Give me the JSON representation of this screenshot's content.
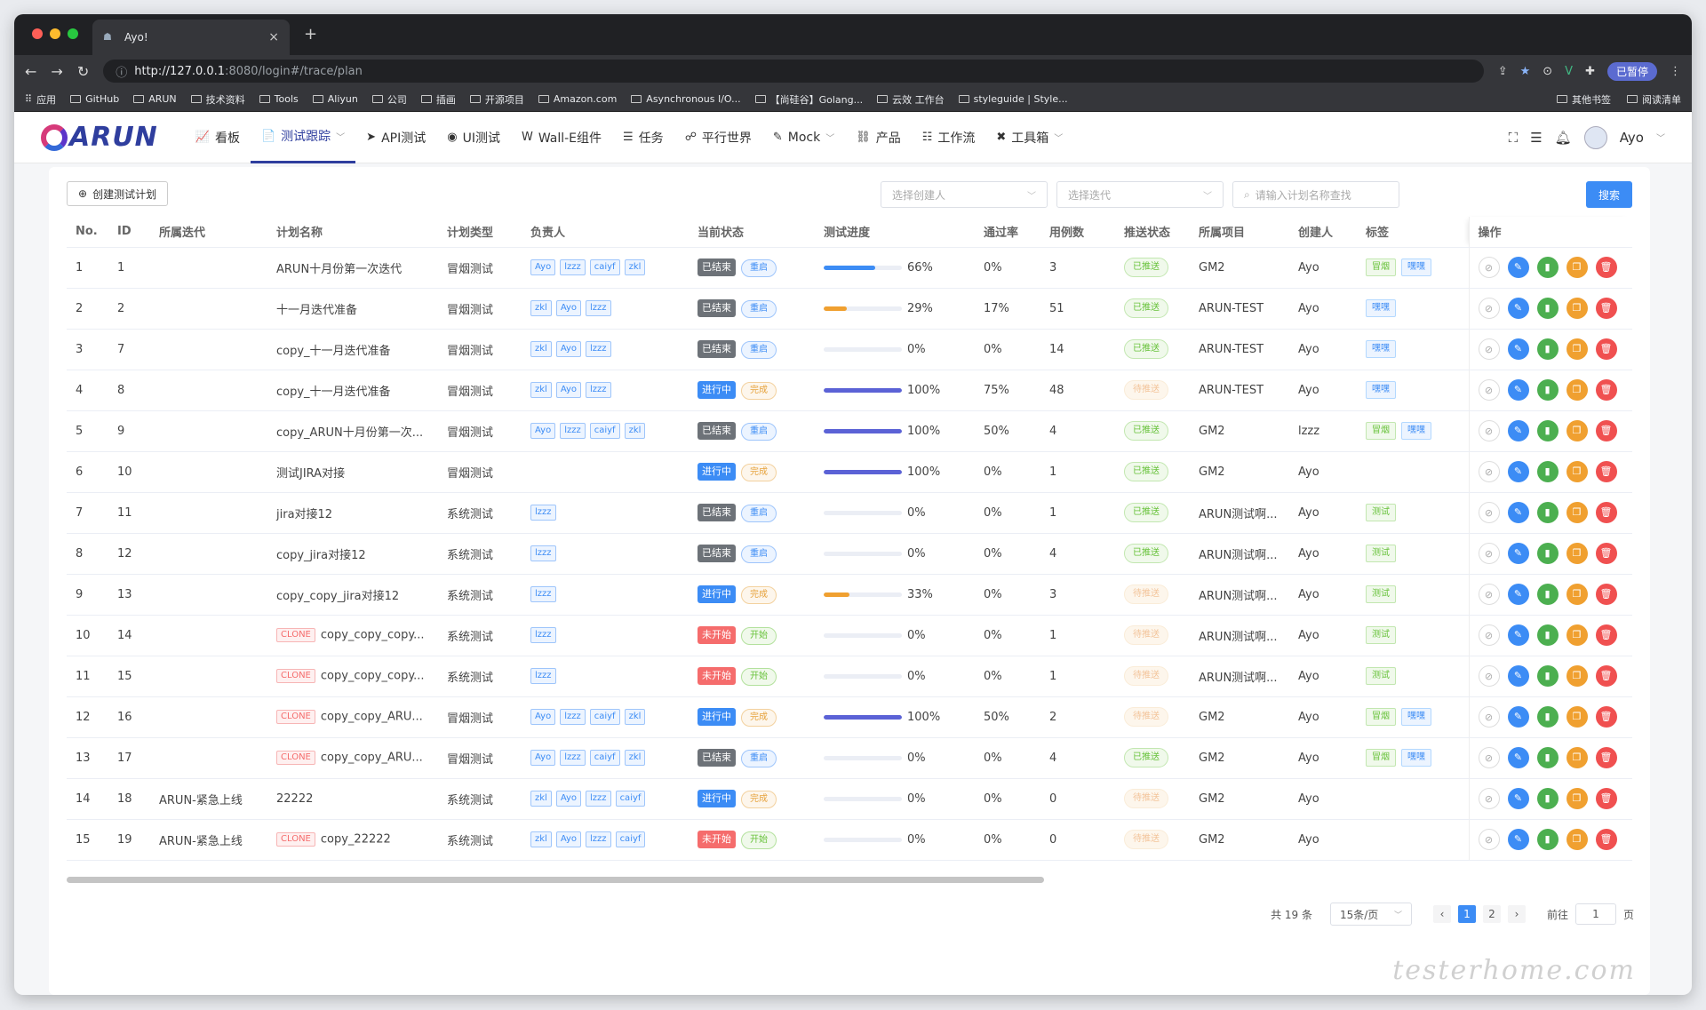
{
  "browser": {
    "tab_title": "Ayo!",
    "url_host": "http://127.0.0.1",
    "url_path": ":8080/login#/trace/plan",
    "paused_label": "已暂停",
    "bookmarks": [
      "应用",
      "GitHub",
      "ARUN",
      "技术资料",
      "Tools",
      "Aliyun",
      "公司",
      "插画",
      "开源项目",
      "Amazon.com",
      "Asynchronous I/O...",
      "【尚硅谷】Golang...",
      "云效 工作台",
      "styleguide | Style..."
    ],
    "bookmarks_right": [
      "其他书签",
      "阅读清单"
    ]
  },
  "app": {
    "logo": "ARUN",
    "menu": [
      {
        "icon": "📈",
        "label": "看板"
      },
      {
        "icon": "📄",
        "label": "测试跟踪",
        "caret": "﹀"
      },
      {
        "icon": "➤",
        "label": "API测试"
      },
      {
        "icon": "◉",
        "label": "UI测试"
      },
      {
        "icon": "W",
        "label": "Wall-E组件"
      },
      {
        "icon": "☰",
        "label": "任务"
      },
      {
        "icon": "☍",
        "label": "平行世界"
      },
      {
        "icon": "✎",
        "label": "Mock",
        "caret": "﹀"
      },
      {
        "icon": "⛓",
        "label": "产品"
      },
      {
        "icon": "☷",
        "label": "工作流"
      },
      {
        "icon": "✖",
        "label": "工具箱",
        "caret": "﹀"
      }
    ],
    "user": "Ayo"
  },
  "toolbar": {
    "create_label": "创建测试计划",
    "creator_placeholder": "选择创建人",
    "iteration_placeholder": "选择迭代",
    "search_placeholder": "请输入计划名称查找",
    "search_label": "搜索"
  },
  "columns": [
    "No.",
    "ID",
    "所属迭代",
    "计划名称",
    "计划类型",
    "负责人",
    "当前状态",
    "测试进度",
    "通过率",
    "用例数",
    "推送状态",
    "所属项目",
    "创建人",
    "标签",
    "操作"
  ],
  "rows": [
    {
      "no": "1",
      "id": "1",
      "iter": "",
      "clone": "",
      "name": "ARUN十月份第一次迭代",
      "type": "冒烟测试",
      "owners": [
        "Ayo",
        "lzzz",
        "caiyf",
        "zkl"
      ],
      "state": "已结束",
      "action": "重启",
      "progress": "66%",
      "pass": "0%",
      "cases": "3",
      "push": "已推送",
      "project": "GM2",
      "creator": "Ayo",
      "labels": [
        "冒烟",
        "嘿嘿"
      ]
    },
    {
      "no": "2",
      "id": "2",
      "iter": "",
      "clone": "",
      "name": "十一月迭代准备",
      "type": "冒烟测试",
      "owners": [
        "zkl",
        "Ayo",
        "lzzz"
      ],
      "state": "已结束",
      "action": "重启",
      "progress": "29%",
      "pass": "17%",
      "cases": "51",
      "push": "已推送",
      "project": "ARUN-TEST",
      "creator": "Ayo",
      "labels": [
        "嘿嘿"
      ]
    },
    {
      "no": "3",
      "id": "7",
      "iter": "",
      "clone": "",
      "name": "copy_十一月迭代准备",
      "type": "冒烟测试",
      "owners": [
        "zkl",
        "Ayo",
        "lzzz"
      ],
      "state": "已结束",
      "action": "重启",
      "progress": "0%",
      "pass": "0%",
      "cases": "14",
      "push": "已推送",
      "project": "ARUN-TEST",
      "creator": "Ayo",
      "labels": [
        "嘿嘿"
      ]
    },
    {
      "no": "4",
      "id": "8",
      "iter": "",
      "clone": "",
      "name": "copy_十一月迭代准备",
      "type": "冒烟测试",
      "owners": [
        "zkl",
        "Ayo",
        "lzzz"
      ],
      "state": "进行中",
      "action": "完成",
      "progress": "100%",
      "pass": "75%",
      "cases": "48",
      "push": "待推送",
      "project": "ARUN-TEST",
      "creator": "Ayo",
      "labels": [
        "嘿嘿"
      ]
    },
    {
      "no": "5",
      "id": "9",
      "iter": "",
      "clone": "",
      "name": "copy_ARUN十月份第一次...",
      "type": "冒烟测试",
      "owners": [
        "Ayo",
        "lzzz",
        "caiyf",
        "zkl"
      ],
      "state": "已结束",
      "action": "重启",
      "progress": "100%",
      "pass": "50%",
      "cases": "4",
      "push": "已推送",
      "project": "GM2",
      "creator": "lzzz",
      "labels": [
        "冒烟",
        "嘿嘿"
      ]
    },
    {
      "no": "6",
      "id": "10",
      "iter": "",
      "clone": "",
      "name": "测试JIRA对接",
      "type": "冒烟测试",
      "owners": [],
      "state": "进行中",
      "action": "完成",
      "progress": "100%",
      "pass": "0%",
      "cases": "1",
      "push": "已推送",
      "project": "GM2",
      "creator": "Ayo",
      "labels": []
    },
    {
      "no": "7",
      "id": "11",
      "iter": "",
      "clone": "",
      "name": "jira对接12",
      "type": "系统测试",
      "owners": [
        "lzzz"
      ],
      "state": "已结束",
      "action": "重启",
      "progress": "0%",
      "pass": "0%",
      "cases": "1",
      "push": "已推送",
      "project": "ARUN测试啊...",
      "creator": "Ayo",
      "labels": [
        "测试"
      ]
    },
    {
      "no": "8",
      "id": "12",
      "iter": "",
      "clone": "",
      "name": "copy_jira对接12",
      "type": "系统测试",
      "owners": [
        "lzzz"
      ],
      "state": "已结束",
      "action": "重启",
      "progress": "0%",
      "pass": "0%",
      "cases": "4",
      "push": "已推送",
      "project": "ARUN测试啊...",
      "creator": "Ayo",
      "labels": [
        "测试"
      ]
    },
    {
      "no": "9",
      "id": "13",
      "iter": "",
      "clone": "",
      "name": "copy_copy_jira对接12",
      "type": "系统测试",
      "owners": [
        "lzzz"
      ],
      "state": "进行中",
      "action": "完成",
      "progress": "33%",
      "pass": "0%",
      "cases": "3",
      "push": "待推送",
      "project": "ARUN测试啊...",
      "creator": "Ayo",
      "labels": [
        "测试"
      ]
    },
    {
      "no": "10",
      "id": "14",
      "iter": "",
      "clone": "CLONE",
      "name": "copy_copy_copy...",
      "type": "系统测试",
      "owners": [
        "lzzz"
      ],
      "state": "未开始",
      "action": "开始",
      "progress": "0%",
      "pass": "0%",
      "cases": "1",
      "push": "待推送",
      "project": "ARUN测试啊...",
      "creator": "Ayo",
      "labels": [
        "测试"
      ]
    },
    {
      "no": "11",
      "id": "15",
      "iter": "",
      "clone": "CLONE",
      "name": "copy_copy_copy...",
      "type": "系统测试",
      "owners": [
        "lzzz"
      ],
      "state": "未开始",
      "action": "开始",
      "progress": "0%",
      "pass": "0%",
      "cases": "1",
      "push": "待推送",
      "project": "ARUN测试啊...",
      "creator": "Ayo",
      "labels": [
        "测试"
      ]
    },
    {
      "no": "12",
      "id": "16",
      "iter": "",
      "clone": "CLONE",
      "name": "copy_copy_ARU...",
      "type": "冒烟测试",
      "owners": [
        "Ayo",
        "lzzz",
        "caiyf",
        "zkl"
      ],
      "state": "进行中",
      "action": "完成",
      "progress": "100%",
      "pass": "50%",
      "cases": "2",
      "push": "待推送",
      "project": "GM2",
      "creator": "Ayo",
      "labels": [
        "冒烟",
        "嘿嘿"
      ]
    },
    {
      "no": "13",
      "id": "17",
      "iter": "",
      "clone": "CLONE",
      "name": "copy_copy_ARU...",
      "type": "冒烟测试",
      "owners": [
        "Ayo",
        "lzzz",
        "caiyf",
        "zkl"
      ],
      "state": "已结束",
      "action": "重启",
      "progress": "0%",
      "pass": "0%",
      "cases": "4",
      "push": "已推送",
      "project": "GM2",
      "creator": "Ayo",
      "labels": [
        "冒烟",
        "嘿嘿"
      ]
    },
    {
      "no": "14",
      "id": "18",
      "iter": "ARUN-紧急上线",
      "clone": "",
      "name": "22222",
      "type": "系统测试",
      "owners": [
        "zkl",
        "Ayo",
        "lzzz",
        "caiyf"
      ],
      "state": "进行中",
      "action": "完成",
      "progress": "0%",
      "pass": "0%",
      "cases": "0",
      "push": "待推送",
      "project": "GM2",
      "creator": "Ayo",
      "labels": []
    },
    {
      "no": "15",
      "id": "19",
      "iter": "ARUN-紧急上线",
      "clone": "CLONE",
      "name": "copy_22222",
      "type": "系统测试",
      "owners": [
        "zkl",
        "Ayo",
        "lzzz",
        "caiyf"
      ],
      "state": "未开始",
      "action": "开始",
      "progress": "0%",
      "pass": "0%",
      "cases": "0",
      "push": "待推送",
      "project": "GM2",
      "creator": "Ayo",
      "labels": []
    }
  ],
  "ops_icons": [
    "link-icon",
    "edit-icon",
    "report-icon",
    "copy-icon",
    "delete-icon"
  ],
  "pagination": {
    "total": "共 19 条",
    "page_size": "15条/页",
    "pages": [
      "1",
      "2"
    ],
    "current": "1",
    "goto_label": "前往",
    "goto_value": "1",
    "page_unit": "页"
  },
  "watermark": "testerhome.com",
  "colors": {
    "primary": "#3c8cf5",
    "state_ended": "#6d7278",
    "state_running": "#3c8cf5",
    "state_notstarted": "#f56c6c",
    "push_done": "#67c23a",
    "label_smoke": "#67c23a",
    "label_hey": "#3c8cf5",
    "label_test": "#67c23a"
  }
}
